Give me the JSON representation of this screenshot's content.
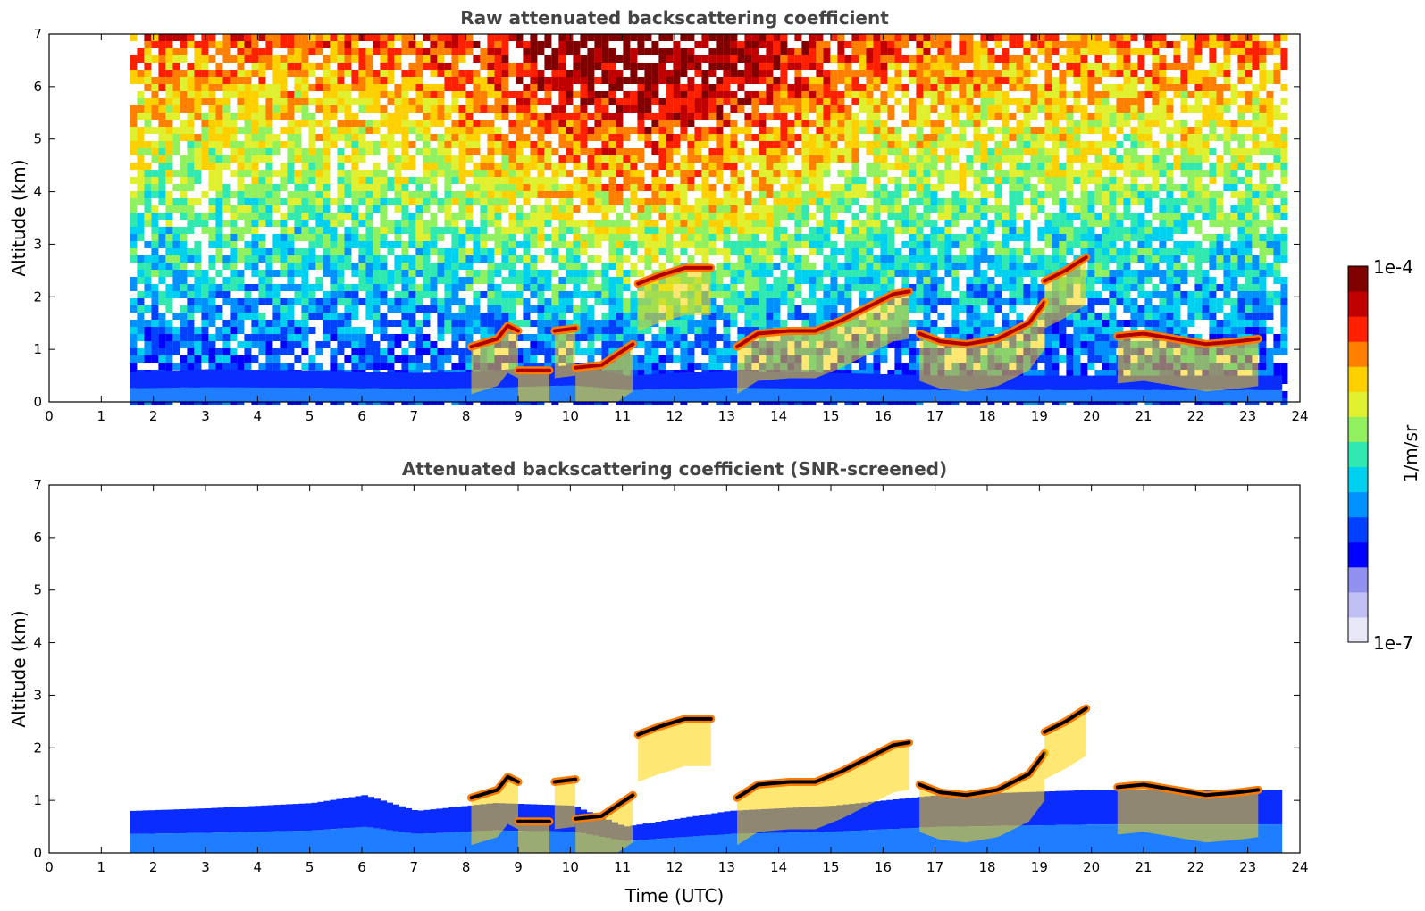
{
  "chart_data": [
    {
      "type": "heatmap",
      "title": "Raw attenuated backscattering coefficient",
      "xlabel": "",
      "ylabel": "Altitude (km)",
      "xlim": [
        0,
        24
      ],
      "ylim": [
        0,
        7
      ],
      "x_ticks": [
        "0",
        "1",
        "2",
        "3",
        "4",
        "5",
        "6",
        "7",
        "8",
        "9",
        "10",
        "11",
        "12",
        "13",
        "14",
        "15",
        "16",
        "17",
        "18",
        "19",
        "20",
        "21",
        "22",
        "23",
        "24"
      ],
      "y_ticks": [
        "0",
        "1",
        "2",
        "3",
        "4",
        "5",
        "6",
        "7"
      ],
      "data_time_range": [
        1.55,
        23.65
      ],
      "noise": true,
      "features": [
        {
          "kind": "boundary_layer",
          "points": [
            [
              1.55,
              0.58
            ],
            [
              3,
              0.62
            ],
            [
              5,
              0.6
            ],
            [
              7,
              0.55
            ],
            [
              8.5,
              0.6
            ],
            [
              10,
              0.7
            ],
            [
              11,
              0.5
            ],
            [
              13,
              0.6
            ],
            [
              15,
              0.55
            ],
            [
              17,
              0.5
            ],
            [
              20,
              0.5
            ],
            [
              23.65,
              0.5
            ]
          ]
        },
        {
          "kind": "cloud",
          "points": [
            [
              11.3,
              2.25
            ],
            [
              11.7,
              2.4
            ],
            [
              12.2,
              2.55
            ],
            [
              12.7,
              2.55
            ]
          ]
        },
        {
          "kind": "cloud",
          "points": [
            [
              8.1,
              1.05
            ],
            [
              8.6,
              1.2
            ],
            [
              8.8,
              1.45
            ],
            [
              9.0,
              1.35
            ]
          ]
        },
        {
          "kind": "cloud",
          "points": [
            [
              9.7,
              1.35
            ],
            [
              10.1,
              1.4
            ]
          ]
        },
        {
          "kind": "cloud",
          "points": [
            [
              9.0,
              0.6
            ],
            [
              9.6,
              0.6
            ]
          ]
        },
        {
          "kind": "cloud",
          "points": [
            [
              10.1,
              0.65
            ],
            [
              10.6,
              0.7
            ],
            [
              10.9,
              0.9
            ],
            [
              11.2,
              1.1
            ]
          ]
        },
        {
          "kind": "cloud",
          "points": [
            [
              13.2,
              1.05
            ],
            [
              13.6,
              1.3
            ],
            [
              14.2,
              1.35
            ],
            [
              14.7,
              1.35
            ],
            [
              15.2,
              1.55
            ],
            [
              15.8,
              1.85
            ],
            [
              16.2,
              2.05
            ],
            [
              16.5,
              2.1
            ]
          ]
        },
        {
          "kind": "cloud",
          "points": [
            [
              16.7,
              1.3
            ],
            [
              17.1,
              1.15
            ],
            [
              17.6,
              1.1
            ],
            [
              18.2,
              1.2
            ],
            [
              18.8,
              1.5
            ],
            [
              19.1,
              1.9
            ]
          ]
        },
        {
          "kind": "cloud",
          "points": [
            [
              19.1,
              2.3
            ],
            [
              19.5,
              2.5
            ],
            [
              19.9,
              2.75
            ]
          ]
        },
        {
          "kind": "cloud",
          "points": [
            [
              20.5,
              1.25
            ],
            [
              21.0,
              1.3
            ],
            [
              21.6,
              1.2
            ],
            [
              22.2,
              1.1
            ],
            [
              22.8,
              1.15
            ],
            [
              23.2,
              1.2
            ]
          ]
        }
      ]
    },
    {
      "type": "heatmap",
      "title": "Attenuated backscattering coefficient (SNR-screened)",
      "xlabel": "Time (UTC)",
      "ylabel": "Altitude (km)",
      "xlim": [
        0,
        24
      ],
      "ylim": [
        0,
        7
      ],
      "x_ticks": [
        "0",
        "1",
        "2",
        "3",
        "4",
        "5",
        "6",
        "7",
        "8",
        "9",
        "10",
        "11",
        "12",
        "13",
        "14",
        "15",
        "16",
        "17",
        "18",
        "19",
        "20",
        "21",
        "22",
        "23",
        "24"
      ],
      "y_ticks": [
        "0",
        "1",
        "2",
        "3",
        "4",
        "5",
        "6",
        "7"
      ],
      "data_time_range": [
        1.55,
        23.65
      ],
      "noise": false,
      "features": [
        {
          "kind": "boundary_layer",
          "points": [
            [
              1.55,
              0.8
            ],
            [
              3,
              0.85
            ],
            [
              5,
              0.95
            ],
            [
              6,
              1.1
            ],
            [
              7,
              0.8
            ],
            [
              8.5,
              0.95
            ],
            [
              10,
              0.9
            ],
            [
              11,
              0.5
            ],
            [
              13,
              0.8
            ],
            [
              15,
              0.9
            ],
            [
              17,
              1.1
            ],
            [
              20,
              1.2
            ],
            [
              23.65,
              1.2
            ]
          ]
        },
        {
          "kind": "cloud",
          "points": [
            [
              11.3,
              2.25
            ],
            [
              11.7,
              2.4
            ],
            [
              12.2,
              2.55
            ],
            [
              12.7,
              2.55
            ]
          ]
        },
        {
          "kind": "cloud",
          "points": [
            [
              8.1,
              1.05
            ],
            [
              8.6,
              1.2
            ],
            [
              8.8,
              1.45
            ],
            [
              9.0,
              1.35
            ]
          ]
        },
        {
          "kind": "cloud",
          "points": [
            [
              9.7,
              1.35
            ],
            [
              10.1,
              1.4
            ]
          ]
        },
        {
          "kind": "cloud",
          "points": [
            [
              9.0,
              0.6
            ],
            [
              9.6,
              0.6
            ]
          ]
        },
        {
          "kind": "cloud",
          "points": [
            [
              10.1,
              0.65
            ],
            [
              10.6,
              0.7
            ],
            [
              10.9,
              0.9
            ],
            [
              11.2,
              1.1
            ]
          ]
        },
        {
          "kind": "cloud",
          "points": [
            [
              13.2,
              1.05
            ],
            [
              13.6,
              1.3
            ],
            [
              14.2,
              1.35
            ],
            [
              14.7,
              1.35
            ],
            [
              15.2,
              1.55
            ],
            [
              15.8,
              1.85
            ],
            [
              16.2,
              2.05
            ],
            [
              16.5,
              2.1
            ]
          ]
        },
        {
          "kind": "cloud",
          "points": [
            [
              16.7,
              1.3
            ],
            [
              17.1,
              1.15
            ],
            [
              17.6,
              1.1
            ],
            [
              18.2,
              1.2
            ],
            [
              18.8,
              1.5
            ],
            [
              19.1,
              1.9
            ]
          ]
        },
        {
          "kind": "cloud",
          "points": [
            [
              19.1,
              2.3
            ],
            [
              19.5,
              2.5
            ],
            [
              19.9,
              2.75
            ]
          ]
        },
        {
          "kind": "cloud",
          "points": [
            [
              20.5,
              1.25
            ],
            [
              21.0,
              1.3
            ],
            [
              21.6,
              1.2
            ],
            [
              22.2,
              1.1
            ],
            [
              22.8,
              1.15
            ],
            [
              23.2,
              1.2
            ]
          ]
        }
      ]
    }
  ],
  "colorbar": {
    "max_label": "1e-4",
    "min_label": "1e-7",
    "unit_label": "1/m/sr",
    "colors": [
      "#e8e8f8",
      "#c0c0f4",
      "#9090ee",
      "#0000ff",
      "#0040ff",
      "#0090ff",
      "#00d0f0",
      "#30e8b0",
      "#90f060",
      "#e0f030",
      "#ffd000",
      "#ff8000",
      "#ff2000",
      "#c00000",
      "#800000"
    ]
  }
}
